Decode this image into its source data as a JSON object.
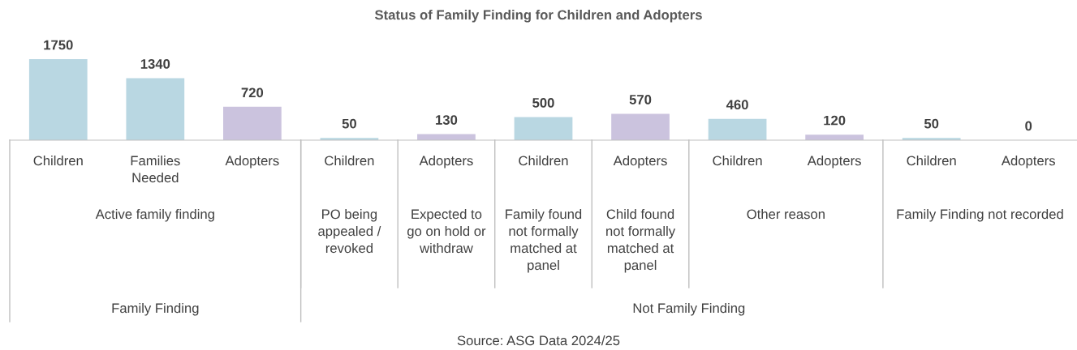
{
  "chart_data": {
    "type": "bar",
    "title": "Status of Family Finding for Children and Adopters",
    "categories": [
      "Children",
      "Families\nNeeded",
      "Adopters",
      "Children",
      "Adopters",
      "Children",
      "Adopters",
      "Children",
      "Adopters",
      "Children",
      "Adopters"
    ],
    "values": [
      1750,
      1340,
      720,
      50,
      130,
      500,
      570,
      460,
      120,
      50,
      0
    ],
    "colors": [
      "#b9d7e2",
      "#b9d7e2",
      "#cbc3de",
      "#b9d7e2",
      "#cbc3de",
      "#b9d7e2",
      "#cbc3de",
      "#b9d7e2",
      "#cbc3de",
      "#b9d7e2",
      "#cbc3de"
    ],
    "data_labels": true,
    "annotations": [
      "Active family finding",
      "PO being\nappealed /\nrevoked",
      "Expected to\ngo on hold or\nwithdraw",
      "Family found\nnot formally\nmatched at\npanel",
      "Child found\nnot formally\nmatched at\npanel",
      "Other reason",
      "Family Finding not recorded",
      "Family Finding",
      "Not Family Finding",
      "Source: ASG Data 2024/25"
    ]
  }
}
